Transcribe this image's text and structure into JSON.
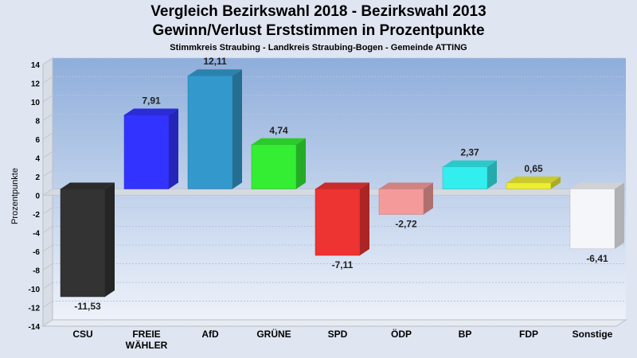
{
  "header": {
    "title_line1": "Vergleich Bezirkswahl 2018 - Bezirkswahl 2013",
    "title_line2": "Gewinn/Verlust Erststimmen in Prozentpunkte",
    "subtitle": "Stimmkreis Straubing - Landkreis Straubing-Bogen - Gemeinde ATTING"
  },
  "chart_data": {
    "type": "bar",
    "ylabel": "Prozentpunkte",
    "ylim": [
      -14,
      14
    ],
    "ytick_step": 2,
    "grid": true,
    "categories": [
      "CSU",
      "FREIE WÄHLER",
      "AfD",
      "GRÜNE",
      "SPD",
      "ÖDP",
      "BP",
      "FDP",
      "Sonstige"
    ],
    "category_lines": [
      [
        "CSU"
      ],
      [
        "FREIE",
        "WÄHLER"
      ],
      [
        "AfD"
      ],
      [
        "GRÜNE"
      ],
      [
        "SPD"
      ],
      [
        "ÖDP"
      ],
      [
        "BP"
      ],
      [
        "FDP"
      ],
      [
        "Sonstige"
      ]
    ],
    "values": [
      -11.53,
      7.91,
      12.11,
      4.74,
      -7.11,
      -2.72,
      2.37,
      0.65,
      -6.41
    ],
    "value_labels": [
      "-11,53",
      "7,91",
      "12,11",
      "4,74",
      "-7,11",
      "-2,72",
      "2,37",
      "0,65",
      "-6,41"
    ],
    "colors": [
      "#333333",
      "#3333ff",
      "#3399cc",
      "#33ee33",
      "#ee3333",
      "#f59a9a",
      "#33eeee",
      "#eeee33",
      "#f4f6fa"
    ]
  }
}
